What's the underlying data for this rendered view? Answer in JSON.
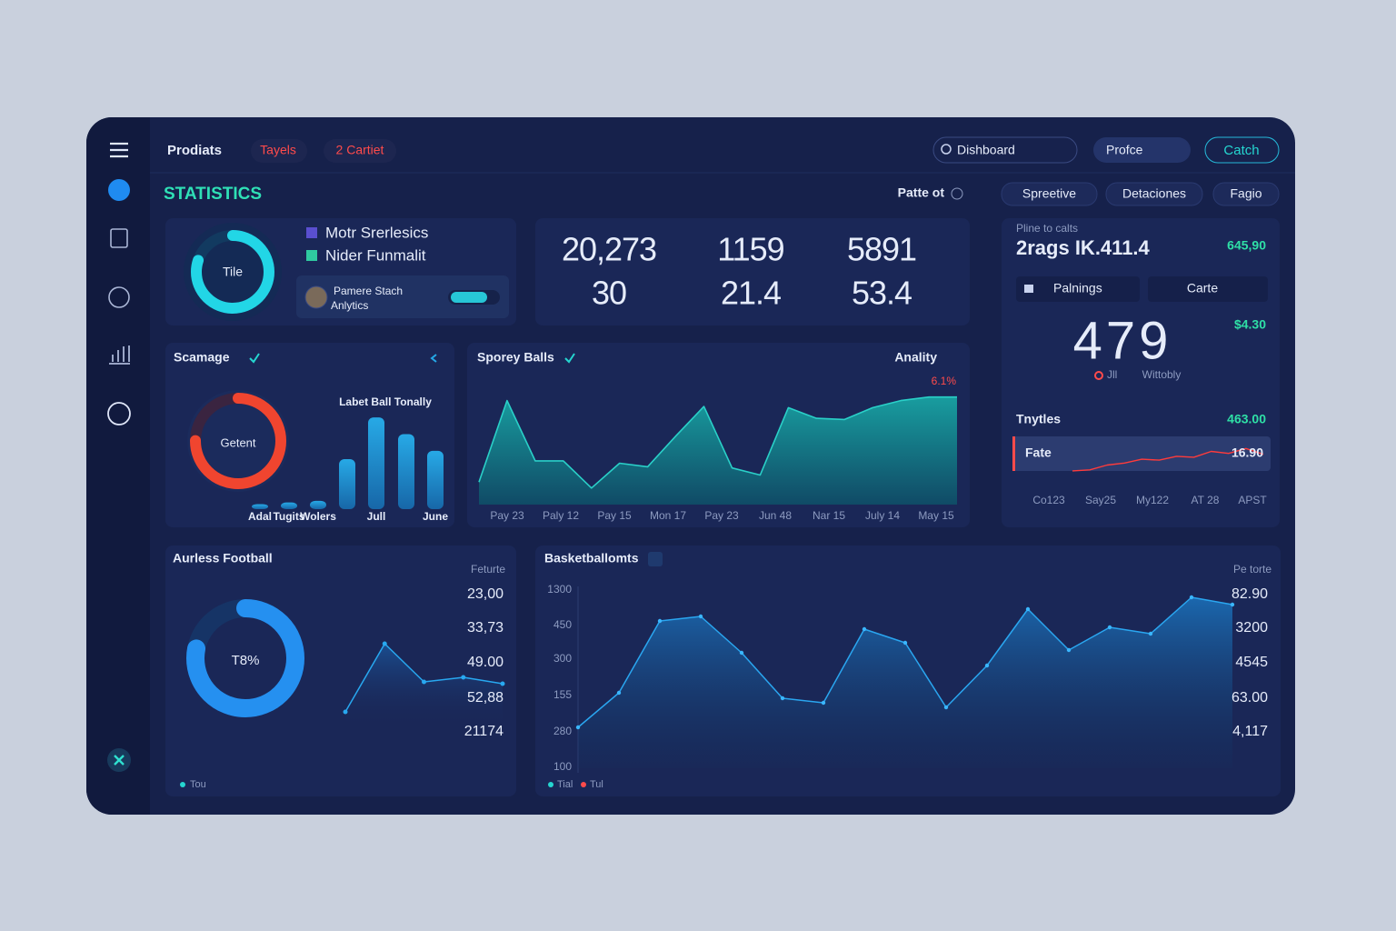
{
  "nav": {
    "items": [
      "Prodiats",
      "Tayels",
      "2 Cartiet"
    ],
    "search": "Dishboard",
    "dropdown": "Profce",
    "button": "Catch"
  },
  "header": {
    "title": "STATISTICS",
    "period": "Patte ot",
    "filters": [
      "Spreetive",
      "Detaciones",
      "Fagio"
    ]
  },
  "summary": {
    "gauge": {
      "label": "Tile",
      "value": 80,
      "range": [
        0,
        100
      ]
    },
    "legend": [
      "Motr Srerlesics",
      "Nider Funmalit"
    ],
    "user": {
      "name": "Pamere Stach",
      "role": "Anlytics"
    }
  },
  "stats": [
    "20,273",
    "1159",
    "5891",
    "30",
    "21.4",
    "53.4"
  ],
  "side": {
    "caption": "Pline to calts",
    "headline": "2rags IK.411.4",
    "badge": "645,90",
    "selects": [
      "Palnings",
      "Carte"
    ],
    "big": "479",
    "big_badge": "$4.30",
    "big_notes": [
      "Jll",
      "Wittobly"
    ],
    "row_title": "Tnytles",
    "row_value": "463.00",
    "fate": {
      "label": "Fate",
      "value_label": "16.90",
      "values": [
        2,
        3,
        8,
        10,
        14,
        13,
        17,
        16,
        22,
        20,
        25,
        19
      ],
      "ylim": [
        0,
        30
      ]
    },
    "x_labels": [
      "Co123",
      "Say25",
      "My122",
      "AT 28",
      "APST"
    ]
  },
  "scamage": {
    "title": "Scamage",
    "gauge": {
      "label": "Getent",
      "value": 75,
      "range": [
        0,
        100
      ]
    },
    "chart_title": "Labet Ball Tonally",
    "categories": [
      "Adal",
      "Tugits",
      "Wolers",
      null,
      "Jull",
      null,
      "June"
    ],
    "values": [
      3,
      4,
      5,
      30,
      55,
      45,
      35
    ],
    "ylim": [
      0,
      60
    ]
  },
  "sporey": {
    "title": "Sporey Balls",
    "right": "Anality",
    "badge": "6.1%",
    "x_labels": [
      "Pay 23",
      "Paly 12",
      "Pay 15",
      "Mon 17",
      "Pay 23",
      "Jun 48",
      "Nar 15",
      "July 14",
      "May 15"
    ],
    "values": [
      19,
      88,
      37,
      37,
      14,
      35,
      32,
      58,
      83,
      31,
      25,
      82,
      73,
      72,
      82,
      88,
      91,
      91
    ],
    "ylim": [
      0,
      100
    ]
  },
  "football": {
    "title": "Aurless Football",
    "gauge": {
      "label": "T8%",
      "value": 78,
      "range": [
        0,
        100
      ]
    },
    "legend": "Tou",
    "side_title": "Feturte",
    "side_values": [
      "23,00",
      "33,73",
      "49.00",
      "52,88",
      "21174"
    ],
    "values": [
      17,
      92,
      50,
      55,
      48
    ],
    "ylim": [
      0,
      100
    ]
  },
  "basket": {
    "title": "Basketballomts",
    "y_labels": [
      "1300",
      "450",
      "300",
      "155",
      "280",
      "100"
    ],
    "side_title": "Pe torte",
    "side_values": [
      "82.90",
      "3200",
      "4545",
      "63.00",
      "4,117"
    ],
    "legend": [
      "Tial",
      "Tul"
    ],
    "values": [
      22.5,
      41.5,
      81,
      83.5,
      63.5,
      38.5,
      36,
      76.5,
      69,
      33.5,
      56.5,
      87.5,
      65,
      77.5,
      74,
      94,
      90
    ],
    "ylim": [
      0,
      100
    ]
  }
}
